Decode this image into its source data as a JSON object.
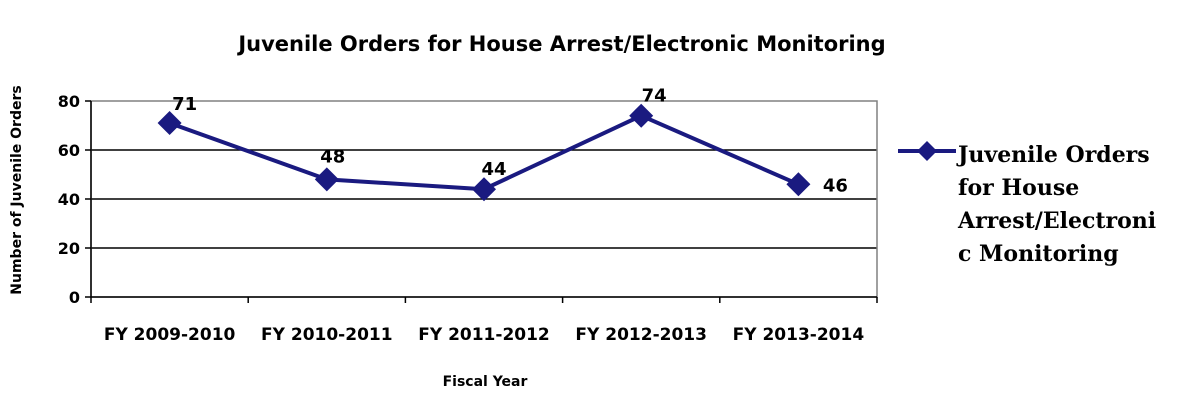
{
  "chart_data": {
    "type": "line",
    "title": "Juvenile Orders for House Arrest/Electronic Monitoring",
    "xlabel": "Fiscal Year",
    "ylabel": "Number of Juvenile Orders",
    "categories": [
      "FY 2009-2010",
      "FY 2010-2011",
      "FY 2011-2012",
      "FY 2012-2013",
      "FY 2013-2014"
    ],
    "series": [
      {
        "name": "Juvenile Orders for House Arrest/Electronic Monitoring",
        "values": [
          71,
          48,
          44,
          74,
          46
        ],
        "data_labels": [
          "71",
          "48",
          "44",
          "74",
          "46"
        ],
        "color": "#1a1a80"
      }
    ],
    "legend": {
      "position": "right",
      "lines": [
        "Juvenile Orders",
        "for House",
        "Arrest/Electroni",
        "c Monitoring"
      ]
    },
    "ylim": [
      0,
      80
    ],
    "yticks": [
      0,
      20,
      40,
      60,
      80
    ],
    "ytick_labels": [
      "0",
      "20",
      "40",
      "60",
      "80"
    ],
    "grid": true,
    "gridline_color": "#000000",
    "plot_border_color": "#808080"
  }
}
